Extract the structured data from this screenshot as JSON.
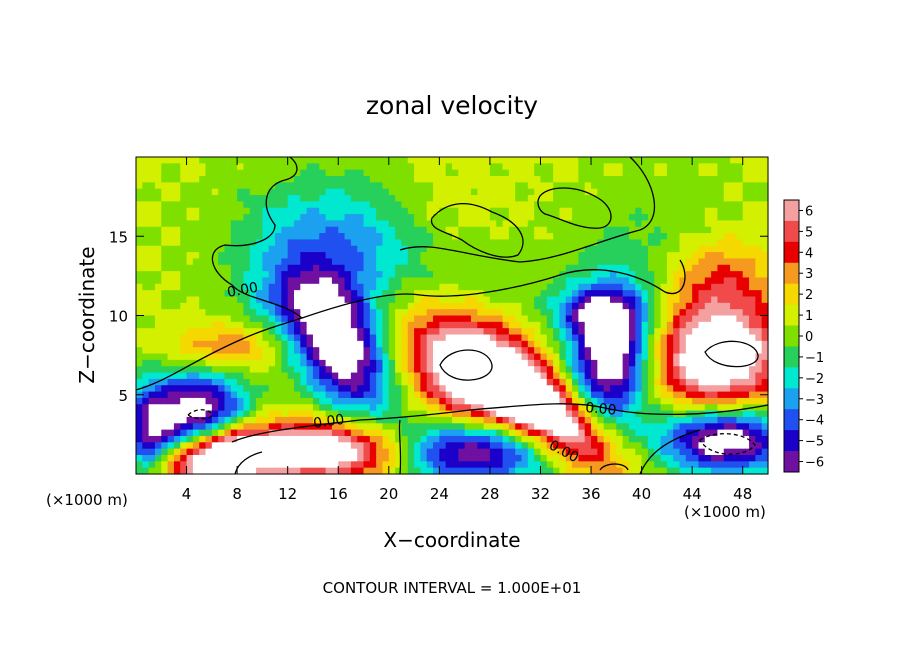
{
  "chart_data": {
    "type": "heatmap",
    "title": "zonal velocity",
    "xlabel": "X−coordinate",
    "ylabel": "Z−coordinate",
    "x_unit_left": "(×1000 m)",
    "x_unit_right": "(×1000 m)",
    "footer": "CONTOUR INTERVAL = 1.000E+01",
    "xlim": [
      0,
      50
    ],
    "ylim": [
      0,
      20
    ],
    "x_ticks": [
      4,
      8,
      12,
      16,
      20,
      24,
      28,
      32,
      36,
      40,
      44,
      48
    ],
    "y_ticks": [
      5,
      10,
      15
    ],
    "colorbar": {
      "levels": [
        6,
        5,
        4,
        3,
        2,
        1,
        0,
        -1,
        -2,
        -3,
        -4,
        -5,
        -6
      ],
      "colors": [
        "#f4a0a0",
        "#f04a4a",
        "#e80000",
        "#f59a1e",
        "#f5d800",
        "#d2f000",
        "#7fe000",
        "#26d05a",
        "#00e8d0",
        "#1ca0f0",
        "#2050f0",
        "#1a00c8",
        "#7010a0"
      ],
      "over_color": "#ffffff",
      "under_color": "#ffffff"
    },
    "contour_labels": [
      "0.00",
      "0.00",
      "0.00",
      "0.00"
    ],
    "field": {
      "background": 0.6,
      "blobs": [
        {
          "x": 15,
          "y": 14.5,
          "sx": 5,
          "sy": 3,
          "amp": -3.4
        },
        {
          "x": 19,
          "y": 15,
          "sx": 3,
          "sy": 2.5,
          "amp": -1
        },
        {
          "x": 12,
          "y": 11,
          "sx": 3,
          "sy": 1.2,
          "amp": -1.5
        },
        {
          "x": 16,
          "y": 8.2,
          "sx": 2.2,
          "sy": 3.6,
          "amp": -9,
          "angle": 40
        },
        {
          "x": 5,
          "y": 3.8,
          "sx": 2.6,
          "sy": 1.8,
          "amp": -8.5
        },
        {
          "x": 1,
          "y": 2,
          "sx": 1.5,
          "sy": 2.5,
          "amp": -6
        },
        {
          "x": 3,
          "y": 0.3,
          "sx": 3,
          "sy": 1,
          "amp": 4
        },
        {
          "x": 7,
          "y": 1.3,
          "sx": 2.4,
          "sy": 1.2,
          "amp": 8
        },
        {
          "x": 15,
          "y": 1.5,
          "sx": 5.5,
          "sy": 1.3,
          "amp": 8.5
        },
        {
          "x": 27,
          "y": 6.3,
          "sx": 4,
          "sy": 2.4,
          "amp": 9.5,
          "angle": -25
        },
        {
          "x": 33,
          "y": 3.5,
          "sx": 4,
          "sy": 1.4,
          "amp": 8,
          "angle": -30
        },
        {
          "x": 26.5,
          "y": 1.5,
          "sx": 4.5,
          "sy": 1.5,
          "amp": -9
        },
        {
          "x": 37.5,
          "y": 7.5,
          "sx": 2.2,
          "sy": 2.8,
          "amp": -9
        },
        {
          "x": 36.5,
          "y": 10.2,
          "sx": 2.5,
          "sy": 1,
          "amp": -4
        },
        {
          "x": 46,
          "y": 7.5,
          "sx": 3.5,
          "sy": 2.5,
          "amp": 9
        },
        {
          "x": 46,
          "y": 12.5,
          "sx": 3,
          "sy": 1.8,
          "amp": 3
        },
        {
          "x": 46.5,
          "y": 2.2,
          "sx": 3.5,
          "sy": 1.5,
          "amp": -9
        },
        {
          "x": 41,
          "y": 13,
          "sx": 4.5,
          "sy": 3.5,
          "amp": -1.5
        },
        {
          "x": 27,
          "y": 11.5,
          "sx": 4,
          "sy": 2,
          "amp": -1.2
        },
        {
          "x": 22,
          "y": 17,
          "sx": 4,
          "sy": 2,
          "amp": 0.8
        },
        {
          "x": 7,
          "y": 8,
          "sx": 3,
          "sy": 1,
          "amp": 3
        }
      ]
    }
  }
}
